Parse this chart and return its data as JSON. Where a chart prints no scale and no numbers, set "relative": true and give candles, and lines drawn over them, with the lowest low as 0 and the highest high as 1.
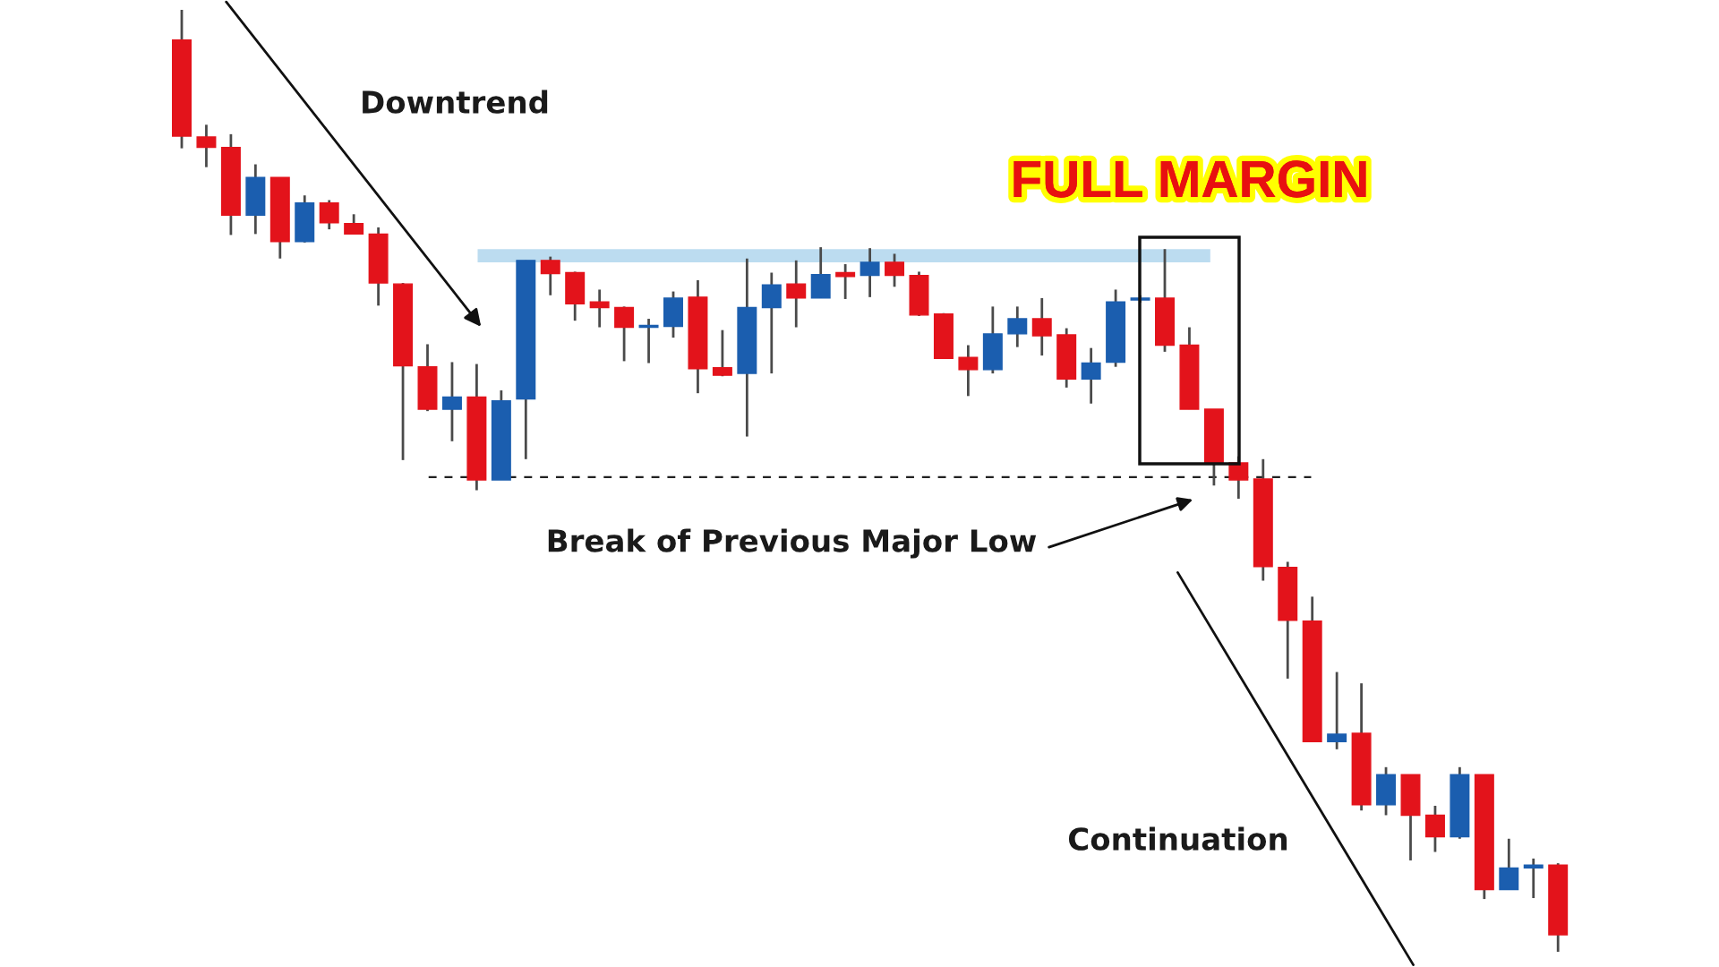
{
  "chart_data": {
    "type": "candlestick",
    "relative": true,
    "categories": [
      null,
      null,
      null,
      null,
      null,
      null,
      null,
      null,
      null,
      null,
      null,
      null,
      null,
      null,
      null,
      null,
      null,
      null,
      null,
      null,
      null,
      null,
      null,
      null,
      null,
      null,
      null,
      null,
      null,
      null,
      null,
      null,
      null,
      null,
      null,
      null,
      null,
      null,
      null,
      null,
      null,
      null,
      null,
      null,
      null,
      null,
      null,
      null,
      null,
      null,
      null,
      null,
      null,
      null,
      null,
      null,
      null
    ],
    "ohlc": [
      [
        0.968,
        1.0,
        0.853,
        0.866
      ],
      [
        0.865,
        0.878,
        0.833,
        0.854
      ],
      [
        0.854,
        0.868,
        0.761,
        0.782
      ],
      [
        0.782,
        0.836,
        0.762,
        0.822
      ],
      [
        0.822,
        0.822,
        0.736,
        0.754
      ],
      [
        0.754,
        0.803,
        0.753,
        0.795
      ],
      [
        0.795,
        0.798,
        0.767,
        0.774
      ],
      [
        0.773,
        0.783,
        0.762,
        0.762
      ],
      [
        0.762,
        0.769,
        0.686,
        0.71
      ],
      [
        0.709,
        0.71,
        0.522,
        0.622
      ],
      [
        0.621,
        0.645,
        0.574,
        0.576
      ],
      [
        0.576,
        0.626,
        0.542,
        0.589
      ],
      [
        0.589,
        0.624,
        0.49,
        0.501
      ],
      [
        0.501,
        0.596,
        0.501,
        0.585
      ],
      [
        0.587,
        0.734,
        0.523,
        0.734
      ],
      [
        0.734,
        0.738,
        0.697,
        0.72
      ],
      [
        0.721,
        0.722,
        0.67,
        0.688
      ],
      [
        0.69,
        0.703,
        0.663,
        0.684
      ],
      [
        0.684,
        0.685,
        0.627,
        0.663
      ],
      [
        0.663,
        0.672,
        0.625,
        0.665
      ],
      [
        0.664,
        0.701,
        0.652,
        0.694
      ],
      [
        0.695,
        0.713,
        0.593,
        0.619
      ],
      [
        0.62,
        0.66,
        0.611,
        0.612
      ],
      [
        0.614,
        0.736,
        0.547,
        0.684
      ],
      [
        0.684,
        0.721,
        0.614,
        0.708
      ],
      [
        0.709,
        0.734,
        0.663,
        0.694
      ],
      [
        0.694,
        0.748,
        0.694,
        0.719
      ],
      [
        0.721,
        0.73,
        0.693,
        0.717
      ],
      [
        0.718,
        0.747,
        0.695,
        0.732
      ],
      [
        0.732,
        0.741,
        0.706,
        0.718
      ],
      [
        0.718,
        0.722,
        0.675,
        0.676
      ],
      [
        0.677,
        0.678,
        0.63,
        0.63
      ],
      [
        0.631,
        0.644,
        0.59,
        0.618
      ],
      [
        0.618,
        0.685,
        0.614,
        0.656
      ],
      [
        0.656,
        0.685,
        0.642,
        0.672
      ],
      [
        0.672,
        0.694,
        0.633,
        0.654
      ],
      [
        0.655,
        0.662,
        0.599,
        0.608
      ],
      [
        0.608,
        0.641,
        0.582,
        0.625
      ],
      [
        0.626,
        0.703,
        0.621,
        0.69
      ],
      [
        0.692,
        0.697,
        0.689,
        0.694
      ],
      [
        0.694,
        0.746,
        0.637,
        0.644
      ],
      [
        0.644,
        0.663,
        0.576,
        0.576
      ],
      [
        0.576,
        0.576,
        0.495,
        0.518
      ],
      [
        0.519,
        0.526,
        0.481,
        0.501
      ],
      [
        0.502,
        0.523,
        0.394,
        0.409
      ],
      [
        0.408,
        0.414,
        0.29,
        0.352
      ],
      [
        0.351,
        0.377,
        0.223,
        0.223
      ],
      [
        0.223,
        0.297,
        0.215,
        0.231
      ],
      [
        0.232,
        0.285,
        0.15,
        0.156
      ],
      [
        0.156,
        0.196,
        0.145,
        0.188
      ],
      [
        0.188,
        0.188,
        0.097,
        0.145
      ],
      [
        0.145,
        0.155,
        0.106,
        0.122
      ],
      [
        0.122,
        0.196,
        0.12,
        0.188
      ],
      [
        0.188,
        0.188,
        0.056,
        0.066
      ],
      [
        0.066,
        0.12,
        0.066,
        0.089
      ],
      [
        0.089,
        0.099,
        0.057,
        0.092
      ],
      [
        0.092,
        0.094,
        0.0,
        0.018
      ]
    ],
    "colors": [
      "#e3131b",
      "#e3131b",
      "#e3131b",
      "#1b5eaf",
      "#e3131b",
      "#1b5eaf",
      "#e3131b",
      "#e3131b",
      "#e3131b",
      "#e3131b",
      "#e3131b",
      "#1b5eaf",
      "#e3131b",
      "#1b5eaf",
      "#1b5eaf",
      "#e3131b",
      "#e3131b",
      "#e3131b",
      "#e3131b",
      "#1b5eaf",
      "#1b5eaf",
      "#e3131b",
      "#e3131b",
      "#1b5eaf",
      "#1b5eaf",
      "#e3131b",
      "#1b5eaf",
      "#e3131b",
      "#1b5eaf",
      "#e3131b",
      "#e3131b",
      "#e3131b",
      "#e3131b",
      "#1b5eaf",
      "#1b5eaf",
      "#e3131b",
      "#e3131b",
      "#1b5eaf",
      "#1b5eaf",
      "#1b5eaf",
      "#e3131b",
      "#e3131b",
      "#e3131b",
      "#e3131b",
      "#e3131b",
      "#e3131b",
      "#e3131b",
      "#1b5eaf",
      "#e3131b",
      "#1b5eaf",
      "#e3131b",
      "#e3131b",
      "#1b5eaf",
      "#e3131b",
      "#1b5eaf",
      "#1b5eaf",
      "#e3131b"
    ],
    "ref_lines": [
      {
        "axis": "y",
        "value": 0.504,
        "color": "#222222",
        "line_style": "dashed"
      }
    ],
    "bands": [
      {
        "axis": "y",
        "from": 0.732,
        "to": 0.746,
        "color": "#bcdcf0"
      }
    ],
    "annotations": [
      "Downtrend",
      "FULL MARGIN",
      "Break of Previous Major Low",
      "Continuation"
    ]
  }
}
